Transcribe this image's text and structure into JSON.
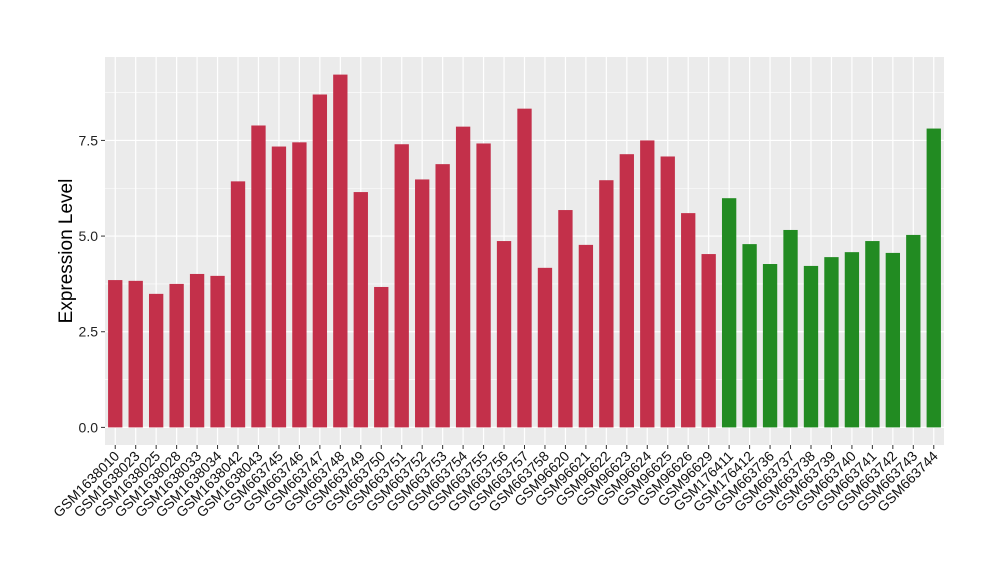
{
  "chart_data": {
    "type": "bar",
    "title": "",
    "xlabel": "",
    "ylabel": "Expression Level",
    "ylim": [
      -0.46,
      9.68
    ],
    "yticks": [
      "0.0",
      "2.5",
      "5.0",
      "7.5"
    ],
    "ytick_values": [
      0,
      2.5,
      5,
      7.5
    ],
    "grid": true,
    "colors": {
      "group1": "#C3304A",
      "group2": "#228B22",
      "panel": "#EBEBEB",
      "grid": "#FFFFFF"
    },
    "categories": [
      "GSM1638010",
      "GSM1638023",
      "GSM1638025",
      "GSM1638028",
      "GSM1638033",
      "GSM1638034",
      "GSM1638042",
      "GSM1638043",
      "GSM663745",
      "GSM663746",
      "GSM663747",
      "GSM663748",
      "GSM663749",
      "GSM663750",
      "GSM663751",
      "GSM663752",
      "GSM663753",
      "GSM663754",
      "GSM663755",
      "GSM663756",
      "GSM663757",
      "GSM663758",
      "GSM96620",
      "GSM96621",
      "GSM96622",
      "GSM96623",
      "GSM96624",
      "GSM96625",
      "GSM96626",
      "GSM96629",
      "GSM176411",
      "GSM176412",
      "GSM663736",
      "GSM663737",
      "GSM663738",
      "GSM663739",
      "GSM663740",
      "GSM663741",
      "GSM663742",
      "GSM663743",
      "GSM663744"
    ],
    "values": [
      3.85,
      3.83,
      3.49,
      3.75,
      4.01,
      3.96,
      6.43,
      7.89,
      7.34,
      7.45,
      8.7,
      9.22,
      6.15,
      3.67,
      7.4,
      6.48,
      6.88,
      7.86,
      7.42,
      4.87,
      8.33,
      4.17,
      5.68,
      4.77,
      6.46,
      7.14,
      7.5,
      7.08,
      5.6,
      4.53,
      5.99,
      4.79,
      4.27,
      5.16,
      4.22,
      4.45,
      4.58,
      4.87,
      4.56,
      5.03,
      7.81
    ],
    "groups": [
      "group1",
      "group1",
      "group1",
      "group1",
      "group1",
      "group1",
      "group1",
      "group1",
      "group1",
      "group1",
      "group1",
      "group1",
      "group1",
      "group1",
      "group1",
      "group1",
      "group1",
      "group1",
      "group1",
      "group1",
      "group1",
      "group1",
      "group1",
      "group1",
      "group1",
      "group1",
      "group1",
      "group1",
      "group1",
      "group1",
      "group2",
      "group2",
      "group2",
      "group2",
      "group2",
      "group2",
      "group2",
      "group2",
      "group2",
      "group2",
      "group2"
    ]
  }
}
